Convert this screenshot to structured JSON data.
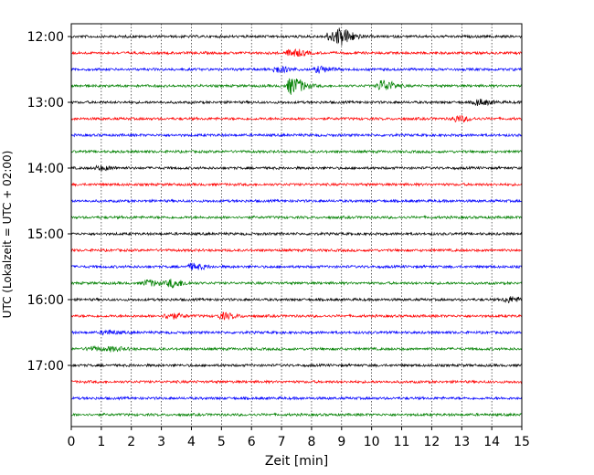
{
  "chart_data": {
    "type": "line",
    "title": "",
    "xlabel": "Zeit  [min]",
    "ylabel": "UTC (Lokalzeit = UTC + 02:00)",
    "xlim": [
      0,
      15
    ],
    "x_ticks": [
      "0",
      "1",
      "2",
      "3",
      "4",
      "5",
      "6",
      "7",
      "8",
      "9",
      "10",
      "11",
      "12",
      "13",
      "14",
      "15"
    ],
    "y_ticks": [
      "12:00",
      "13:00",
      "14:00",
      "15:00",
      "16:00",
      "17:00"
    ],
    "grid": "vertical dotted lines at every minute",
    "trace_start_hour": 12,
    "trace_interval_minutes": 15,
    "colors": [
      "#000000",
      "#ff0000",
      "#0000ff",
      "#008000"
    ],
    "series": [
      {
        "start": "12:00",
        "color": "#000000",
        "events": [
          {
            "t": 8.6,
            "amp": 5
          },
          {
            "t": 8.95,
            "amp": 7
          }
        ]
      },
      {
        "start": "12:15",
        "color": "#ff0000",
        "events": [
          {
            "t": 7.3,
            "amp": 4
          }
        ]
      },
      {
        "start": "12:30",
        "color": "#0000ff",
        "events": [
          {
            "t": 6.8,
            "amp": 3
          },
          {
            "t": 8.2,
            "amp": 3
          }
        ]
      },
      {
        "start": "12:45",
        "color": "#008000",
        "events": [
          {
            "t": 7.3,
            "amp": 9
          },
          {
            "t": 10.3,
            "amp": 6
          }
        ]
      },
      {
        "start": "13:00",
        "color": "#000000",
        "events": [
          {
            "t": 13.5,
            "amp": 3
          }
        ]
      },
      {
        "start": "13:15",
        "color": "#ff0000",
        "events": [
          {
            "t": 12.8,
            "amp": 3
          }
        ]
      },
      {
        "start": "13:30",
        "color": "#0000ff",
        "events": []
      },
      {
        "start": "13:45",
        "color": "#008000",
        "events": []
      },
      {
        "start": "14:00",
        "color": "#000000",
        "events": [
          {
            "t": 0.9,
            "amp": 2
          }
        ]
      },
      {
        "start": "14:15",
        "color": "#ff0000",
        "events": []
      },
      {
        "start": "14:30",
        "color": "#0000ff",
        "events": []
      },
      {
        "start": "14:45",
        "color": "#008000",
        "events": []
      },
      {
        "start": "15:00",
        "color": "#000000",
        "events": []
      },
      {
        "start": "15:15",
        "color": "#ff0000",
        "events": []
      },
      {
        "start": "15:30",
        "color": "#0000ff",
        "events": [
          {
            "t": 4.0,
            "amp": 3
          }
        ]
      },
      {
        "start": "15:45",
        "color": "#008000",
        "events": [
          {
            "t": 2.5,
            "amp": 3
          },
          {
            "t": 3.3,
            "amp": 4
          }
        ]
      },
      {
        "start": "16:00",
        "color": "#000000",
        "events": [
          {
            "t": 14.5,
            "amp": 3
          }
        ]
      },
      {
        "start": "16:15",
        "color": "#ff0000",
        "events": [
          {
            "t": 3.2,
            "amp": 3
          },
          {
            "t": 5.0,
            "amp": 3
          }
        ]
      },
      {
        "start": "16:30",
        "color": "#0000ff",
        "events": [
          {
            "t": 1.1,
            "amp": 2
          }
        ]
      },
      {
        "start": "16:45",
        "color": "#008000",
        "events": [
          {
            "t": 0.6,
            "amp": 2
          },
          {
            "t": 1.3,
            "amp": 2
          }
        ]
      },
      {
        "start": "17:00",
        "color": "#000000",
        "events": []
      },
      {
        "start": "17:15",
        "color": "#ff0000",
        "events": []
      },
      {
        "start": "17:30",
        "color": "#0000ff",
        "events": []
      },
      {
        "start": "17:45",
        "color": "#008000",
        "events": []
      }
    ]
  }
}
